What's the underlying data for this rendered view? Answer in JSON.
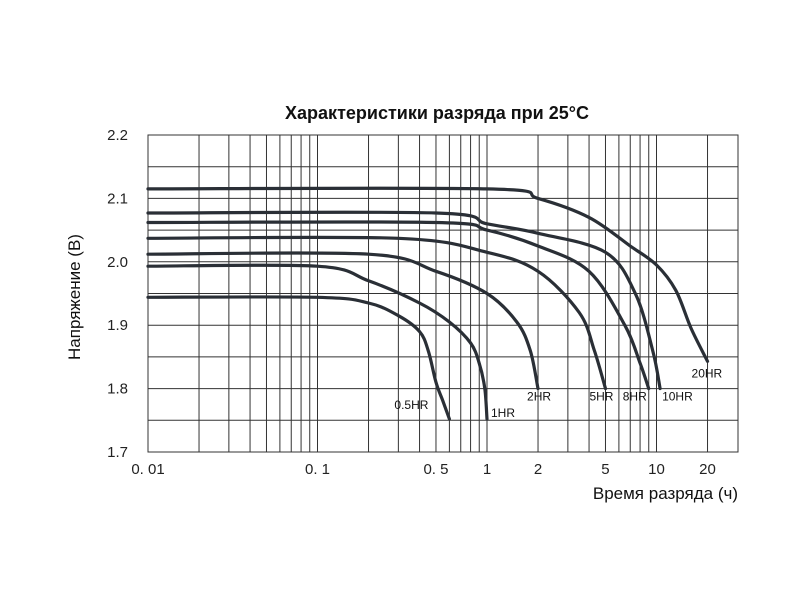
{
  "chart_data": {
    "type": "line",
    "title": "Характеристики разряда при 25°C",
    "xlabel": "Время разряда (ч)",
    "ylabel": "Напряжение (В)",
    "x_scale": "log",
    "xlim": [
      0.01,
      30
    ],
    "ylim": [
      1.7,
      2.2
    ],
    "grid": true,
    "x_ticks": [
      {
        "value": 0.01,
        "label": "0. 01"
      },
      {
        "value": 0.1,
        "label": "0. 1"
      },
      {
        "value": 0.5,
        "label": "0. 5"
      },
      {
        "value": 1,
        "label": "1"
      },
      {
        "value": 2,
        "label": "2"
      },
      {
        "value": 5,
        "label": "5"
      },
      {
        "value": 10,
        "label": "10"
      },
      {
        "value": 20,
        "label": "20"
      }
    ],
    "y_ticks": [
      {
        "value": 1.7,
        "label": "1.7"
      },
      {
        "value": 1.8,
        "label": "1.8"
      },
      {
        "value": 1.9,
        "label": "1.9"
      },
      {
        "value": 2.0,
        "label": "2.0"
      },
      {
        "value": 2.1,
        "label": "2.1"
      },
      {
        "value": 2.2,
        "label": "2.2"
      }
    ],
    "series": [
      {
        "name": "0.5HR",
        "color": "#2a2f36",
        "points": [
          [
            0.01,
            1.944
          ],
          [
            0.1,
            1.944
          ],
          [
            0.2,
            1.935
          ],
          [
            0.3,
            1.915
          ],
          [
            0.4,
            1.89
          ],
          [
            0.45,
            1.86
          ],
          [
            0.5,
            1.81
          ],
          [
            0.55,
            1.78
          ],
          [
            0.6,
            1.752
          ]
        ]
      },
      {
        "name": "1HR",
        "color": "#2a2f36",
        "points": [
          [
            0.01,
            1.993
          ],
          [
            0.1,
            1.993
          ],
          [
            0.2,
            1.97
          ],
          [
            0.4,
            1.935
          ],
          [
            0.6,
            1.905
          ],
          [
            0.8,
            1.872
          ],
          [
            0.9,
            1.84
          ],
          [
            0.97,
            1.8
          ],
          [
            1.0,
            1.752
          ]
        ]
      },
      {
        "name": "2HR",
        "color": "#2a2f36",
        "points": [
          [
            0.01,
            2.012
          ],
          [
            0.2,
            2.012
          ],
          [
            0.5,
            1.985
          ],
          [
            1.0,
            1.95
          ],
          [
            1.5,
            1.905
          ],
          [
            1.8,
            1.86
          ],
          [
            2.0,
            1.8
          ]
        ]
      },
      {
        "name": "5HR",
        "color": "#2a2f36",
        "points": [
          [
            0.01,
            2.037
          ],
          [
            0.3,
            2.037
          ],
          [
            1.0,
            2.015
          ],
          [
            2.0,
            1.985
          ],
          [
            3.5,
            1.92
          ],
          [
            4.3,
            1.86
          ],
          [
            5.0,
            1.8
          ]
        ]
      },
      {
        "name": "8HR",
        "color": "#2a2f36",
        "points": [
          [
            0.01,
            2.062
          ],
          [
            0.5,
            2.062
          ],
          [
            1.0,
            2.05
          ],
          [
            2.0,
            2.025
          ],
          [
            4.0,
            1.985
          ],
          [
            6.5,
            1.9
          ],
          [
            8.0,
            1.84
          ],
          [
            9.0,
            1.8
          ]
        ]
      },
      {
        "name": "10HR",
        "color": "#2a2f36",
        "points": [
          [
            0.01,
            2.077
          ],
          [
            0.5,
            2.077
          ],
          [
            1.0,
            2.06
          ],
          [
            2.0,
            2.045
          ],
          [
            5.0,
            2.015
          ],
          [
            7.5,
            1.95
          ],
          [
            9.5,
            1.86
          ],
          [
            10.5,
            1.8
          ]
        ]
      },
      {
        "name": "20HR",
        "color": "#2a2f36",
        "points": [
          [
            0.01,
            2.115
          ],
          [
            1.0,
            2.115
          ],
          [
            2.0,
            2.1
          ],
          [
            4.0,
            2.07
          ],
          [
            7.0,
            2.025
          ],
          [
            10.0,
            1.995
          ],
          [
            13.0,
            1.955
          ],
          [
            16.0,
            1.895
          ],
          [
            20.0,
            1.843
          ]
        ]
      }
    ]
  }
}
